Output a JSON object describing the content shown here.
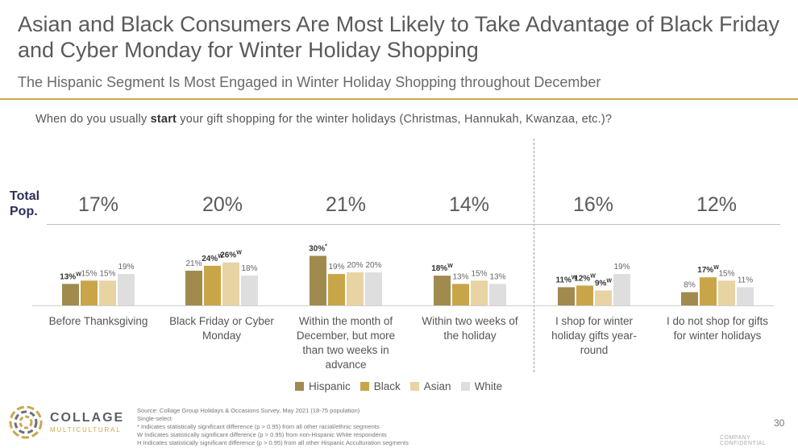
{
  "title": "Asian and Black Consumers Are Most Likely to Take Advantage of Black Friday and Cyber Monday for Winter Holiday Shopping",
  "subtitle": "The Hispanic Segment Is Most Engaged in Winter Holiday Shopping throughout December",
  "question": {
    "before": "When do you usually ",
    "bold": "start",
    "after": " your gift shopping for the winter holidays (Christmas, Hannukah, Kwanzaa, etc.)?"
  },
  "total_label_line1": "Total",
  "total_label_line2": "Pop.",
  "totals": [
    "17%",
    "20%",
    "21%",
    "14%",
    "16%",
    "12%"
  ],
  "colors": {
    "hispanic": "#a08a4e",
    "black": "#c9a54a",
    "asian": "#e8d3a3",
    "white": "#dedede",
    "accent": "#c9a84c",
    "navy": "#2b2f5a"
  },
  "chart_data": {
    "type": "bar",
    "categories": [
      "Before Thanksgiving",
      "Black Friday or Cyber Monday",
      "Within the month of December, but more than two weeks in advance",
      "Within two weeks of the holiday",
      "I shop for winter holiday gifts year-round",
      "I do not shop for gifts for winter holidays"
    ],
    "category_lines": [
      [
        "Before Thanksgiving"
      ],
      [
        "Black Friday or Cyber",
        "Monday"
      ],
      [
        "Within the month of",
        "December, but more",
        "than two weeks in",
        "advance"
      ],
      [
        "Within two weeks of",
        "the holiday"
      ],
      [
        "I shop for winter",
        "holiday gifts year-",
        "round"
      ],
      [
        "I do not shop for gifts",
        "for winter holidays"
      ]
    ],
    "series": [
      {
        "name": "Hispanic",
        "values": [
          13,
          21,
          30,
          18,
          11,
          8
        ],
        "labels": [
          "13%W",
          "21%",
          "30%*",
          "18%W",
          "11%W",
          "8%"
        ],
        "bold": [
          true,
          false,
          true,
          true,
          true,
          false
        ],
        "color": "#a08a4e"
      },
      {
        "name": "Black",
        "values": [
          15,
          24,
          19,
          13,
          12,
          17
        ],
        "labels": [
          "15%",
          "24%W",
          "19%",
          "13%",
          "12%W",
          "17%W"
        ],
        "bold": [
          false,
          true,
          false,
          false,
          true,
          true
        ],
        "color": "#c9a54a"
      },
      {
        "name": "Asian",
        "values": [
          15,
          26,
          20,
          15,
          9,
          15
        ],
        "labels": [
          "15%",
          "26%W",
          "20%",
          "15%",
          "9%W",
          "15%"
        ],
        "bold": [
          false,
          true,
          false,
          false,
          true,
          false
        ],
        "color": "#e8d3a3"
      },
      {
        "name": "White",
        "values": [
          19,
          18,
          20,
          13,
          19,
          11
        ],
        "labels": [
          "19%",
          "18%",
          "20%",
          "13%",
          "19%",
          "11%"
        ],
        "bold": [
          false,
          false,
          false,
          false,
          false,
          false
        ],
        "color": "#dedede"
      }
    ],
    "ylim": [
      0,
      35
    ]
  },
  "footer": {
    "line1": "Source: Collage Group Holidays & Occasions Survey, May 2021 (18-75 population)",
    "line2": "Single-select",
    "line3": "* Indicates statistically significant difference (p > 0.95) from all other racial/ethnic segments",
    "line4": "W Indicates statistically significant difference (p > 0.95) from non-Hispanic White respondents",
    "line5": "H Indicates statistically significant difference (p > 0.95) from all other Hispanic Acculturation segments"
  },
  "logo": {
    "word": "COLLAGE",
    "sub": "MULTICULTURAL"
  },
  "page_number": "30",
  "confidential": "COMPANY CONFIDENTIAL"
}
